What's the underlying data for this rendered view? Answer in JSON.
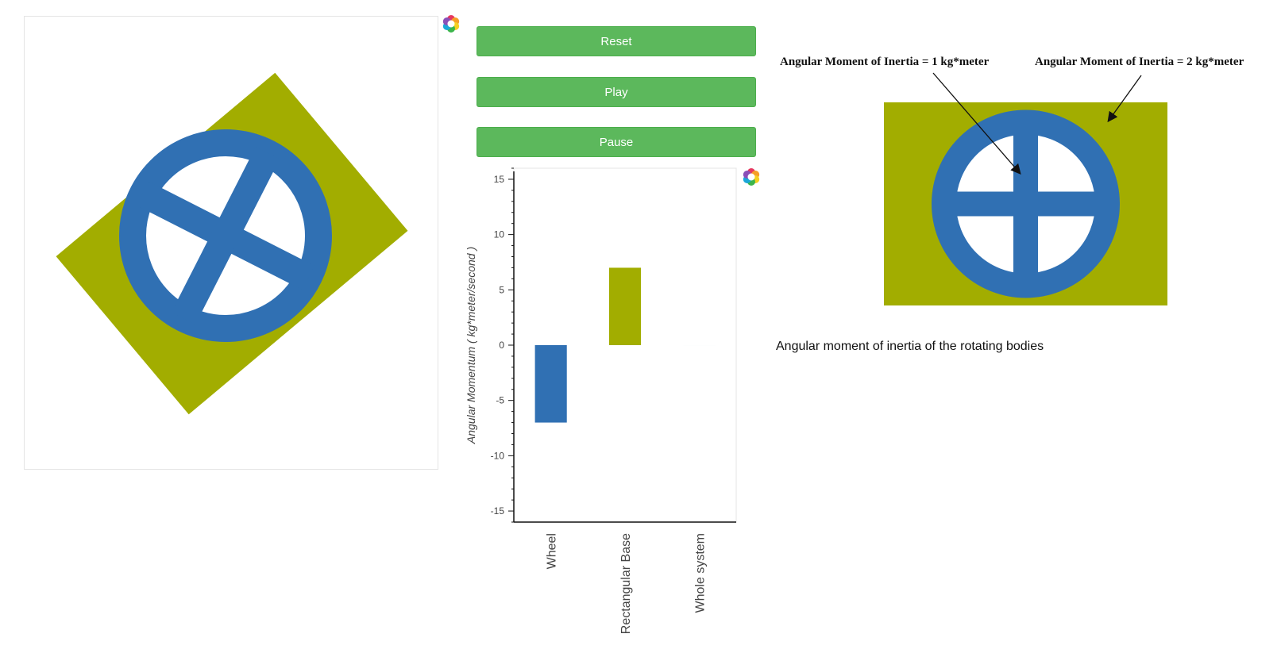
{
  "controls": {
    "reset_label": "Reset",
    "play_label": "Play",
    "pause_label": "Pause"
  },
  "colors": {
    "wheel": "#3070b3",
    "base": "#a2ad00",
    "button": "#5cb85c"
  },
  "simulation": {
    "base_rotation_deg": -40,
    "wheel_spoke_rotation_deg": 27
  },
  "diagram": {
    "annotation_wheel": "Angular Moment of Inertia = 1 kg*meter",
    "annotation_base": "Angular Moment of Inertia = 2 kg*meter",
    "caption": "Angular moment of inertia of the rotating bodies"
  },
  "chart_data": {
    "type": "bar",
    "title": "",
    "categories": [
      "Wheel",
      "Rectangular Base",
      "Whole system"
    ],
    "values": [
      -7,
      7,
      0
    ],
    "bar_colors": [
      "#3070b3",
      "#a2ad00",
      "#3070b3"
    ],
    "ylabel": "Angular Momentum ( kg*meter/second )",
    "xlabel": "",
    "ylim": [
      -16,
      16
    ],
    "yticks": [
      15,
      10,
      5,
      0,
      -5,
      -10,
      -15
    ],
    "grid": false
  }
}
